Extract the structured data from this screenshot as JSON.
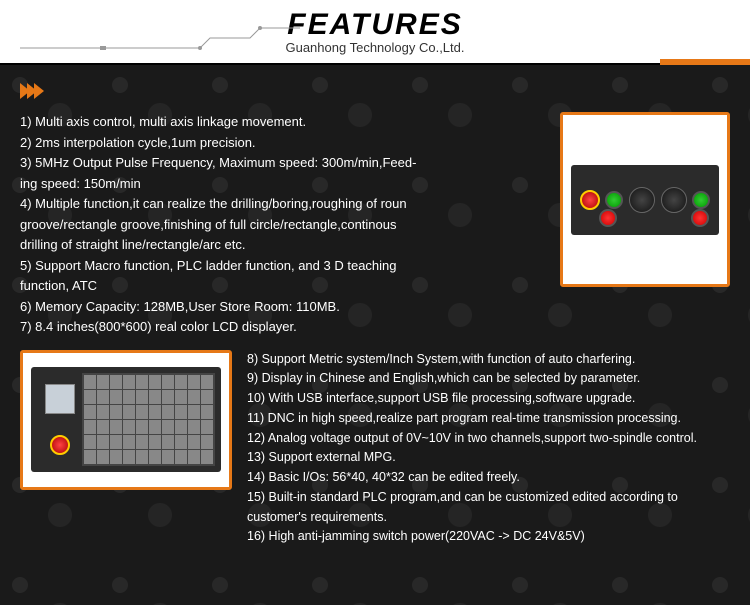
{
  "header": {
    "title": "FEATURES",
    "subtitle": "Guanhong Technology Co.,Ltd."
  },
  "colors": {
    "accent": "#e67817",
    "bg_dark": "#1a1a1a",
    "text_light": "#ffffff"
  },
  "features_top": [
    "1) Multi axis control, multi axis linkage movement.",
    "2) 2ms interpolation cycle,1um precision.",
    "3) 5MHz Output Pulse Frequency, Maximum speed: 300m/min,Feed-",
    "ing speed: 150m/min",
    "4) Multiple function,it can realize the drilling/boring,roughing of roun",
    "groove/rectangle groove,finishing of full circle/rectangle,continous",
    "drilling of straight line/rectangle/arc etc.",
    "5) Support Macro function, PLC ladder function, and 3 D teaching",
    "function, ATC",
    "6) Memory Capacity: 128MB,User Store Room: 110MB.",
    "7) 8.4 inches(800*600) real color LCD displayer."
  ],
  "features_bottom": [
    "8) Support Metric system/Inch System,with function of auto charfering.",
    "9) Display in Chinese and English,which can be selected by parameter.",
    "10) With USB interface,support USB file processing,software upgrade.",
    "11) DNC in high speed,realize part program real-time transmission processing.",
    "12) Analog voltage output of 0V~10V in two channels,support two-spindle control.",
    "13) Support external MPG.",
    "14) Basic I/Os: 56*40, 40*32 can be edited freely.",
    "15) Built-in standard PLC program,and can be customized edited according to",
    "customer's requirements.",
    "16) High anti-jamming switch power(220VAC -> DC 24V&5V)"
  ]
}
